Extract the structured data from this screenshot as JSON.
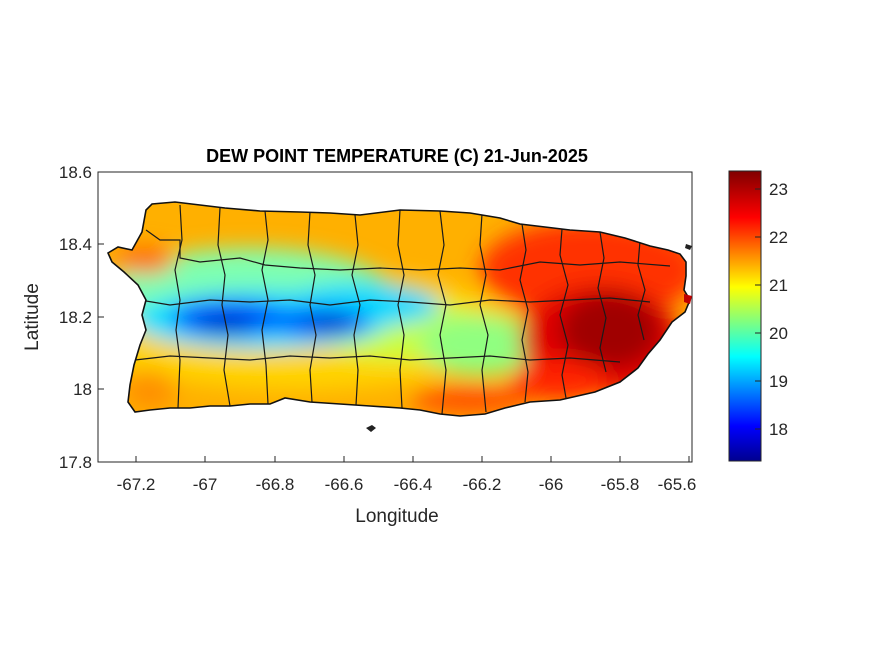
{
  "map": {
    "title": "DEW POINT TEMPERATURE (C) 21-Jun-2025",
    "xlabel": "Longitude",
    "ylabel": "Latitude",
    "xlim": [
      -67.3,
      -65.58
    ],
    "ylim": [
      17.8,
      18.6
    ],
    "x_ticks": [
      "-67.2",
      "-67",
      "-66.8",
      "-66.6",
      "-66.4",
      "-66.2",
      "-66",
      "-65.8",
      "-65.6"
    ],
    "y_ticks": [
      "18.6",
      "18.4",
      "18.2",
      "18",
      "17.8"
    ],
    "region": "Puerto Rico",
    "colormap": "jet"
  },
  "colorbar": {
    "range": [
      17.3,
      23.4
    ],
    "ticks": [
      "23",
      "22",
      "21",
      "20",
      "19",
      "18"
    ],
    "colors": [
      "#00008f",
      "#0000ff",
      "#00ffff",
      "#ffff00",
      "#ff0000",
      "#800000"
    ]
  }
}
